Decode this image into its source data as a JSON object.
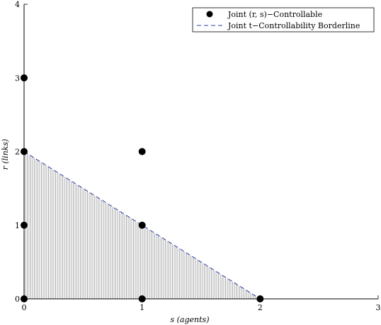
{
  "chart_data": {
    "type": "scatter",
    "xlabel": "s (agents)",
    "ylabel": "r (links)",
    "xlim": [
      0,
      3
    ],
    "ylim": [
      0,
      4
    ],
    "xticks": [
      "0",
      "1",
      "2",
      "3"
    ],
    "yticks": [
      "0",
      "1",
      "2",
      "3",
      "4"
    ],
    "grid": false,
    "legend_position": "top-right",
    "series": [
      {
        "name": "Joint (r, s)−Controllable",
        "kind": "scatter",
        "color": "#000000",
        "points": [
          {
            "x": 0,
            "y": 0
          },
          {
            "x": 0,
            "y": 1
          },
          {
            "x": 0,
            "y": 2
          },
          {
            "x": 0,
            "y": 3
          },
          {
            "x": 1,
            "y": 0
          },
          {
            "x": 1,
            "y": 1
          },
          {
            "x": 1,
            "y": 2
          },
          {
            "x": 2,
            "y": 0
          }
        ]
      },
      {
        "name": "Joint t−Controllability Borderline",
        "kind": "dashed-line",
        "color": "#2b3fa8",
        "points": [
          {
            "x": 0,
            "y": 2
          },
          {
            "x": 2,
            "y": 0
          }
        ]
      }
    ],
    "shaded_region": {
      "vertices": [
        {
          "x": 0,
          "y": 0
        },
        {
          "x": 0,
          "y": 2
        },
        {
          "x": 2,
          "y": 0
        }
      ],
      "fill": "hatched",
      "color": "#8a8a8a"
    }
  }
}
